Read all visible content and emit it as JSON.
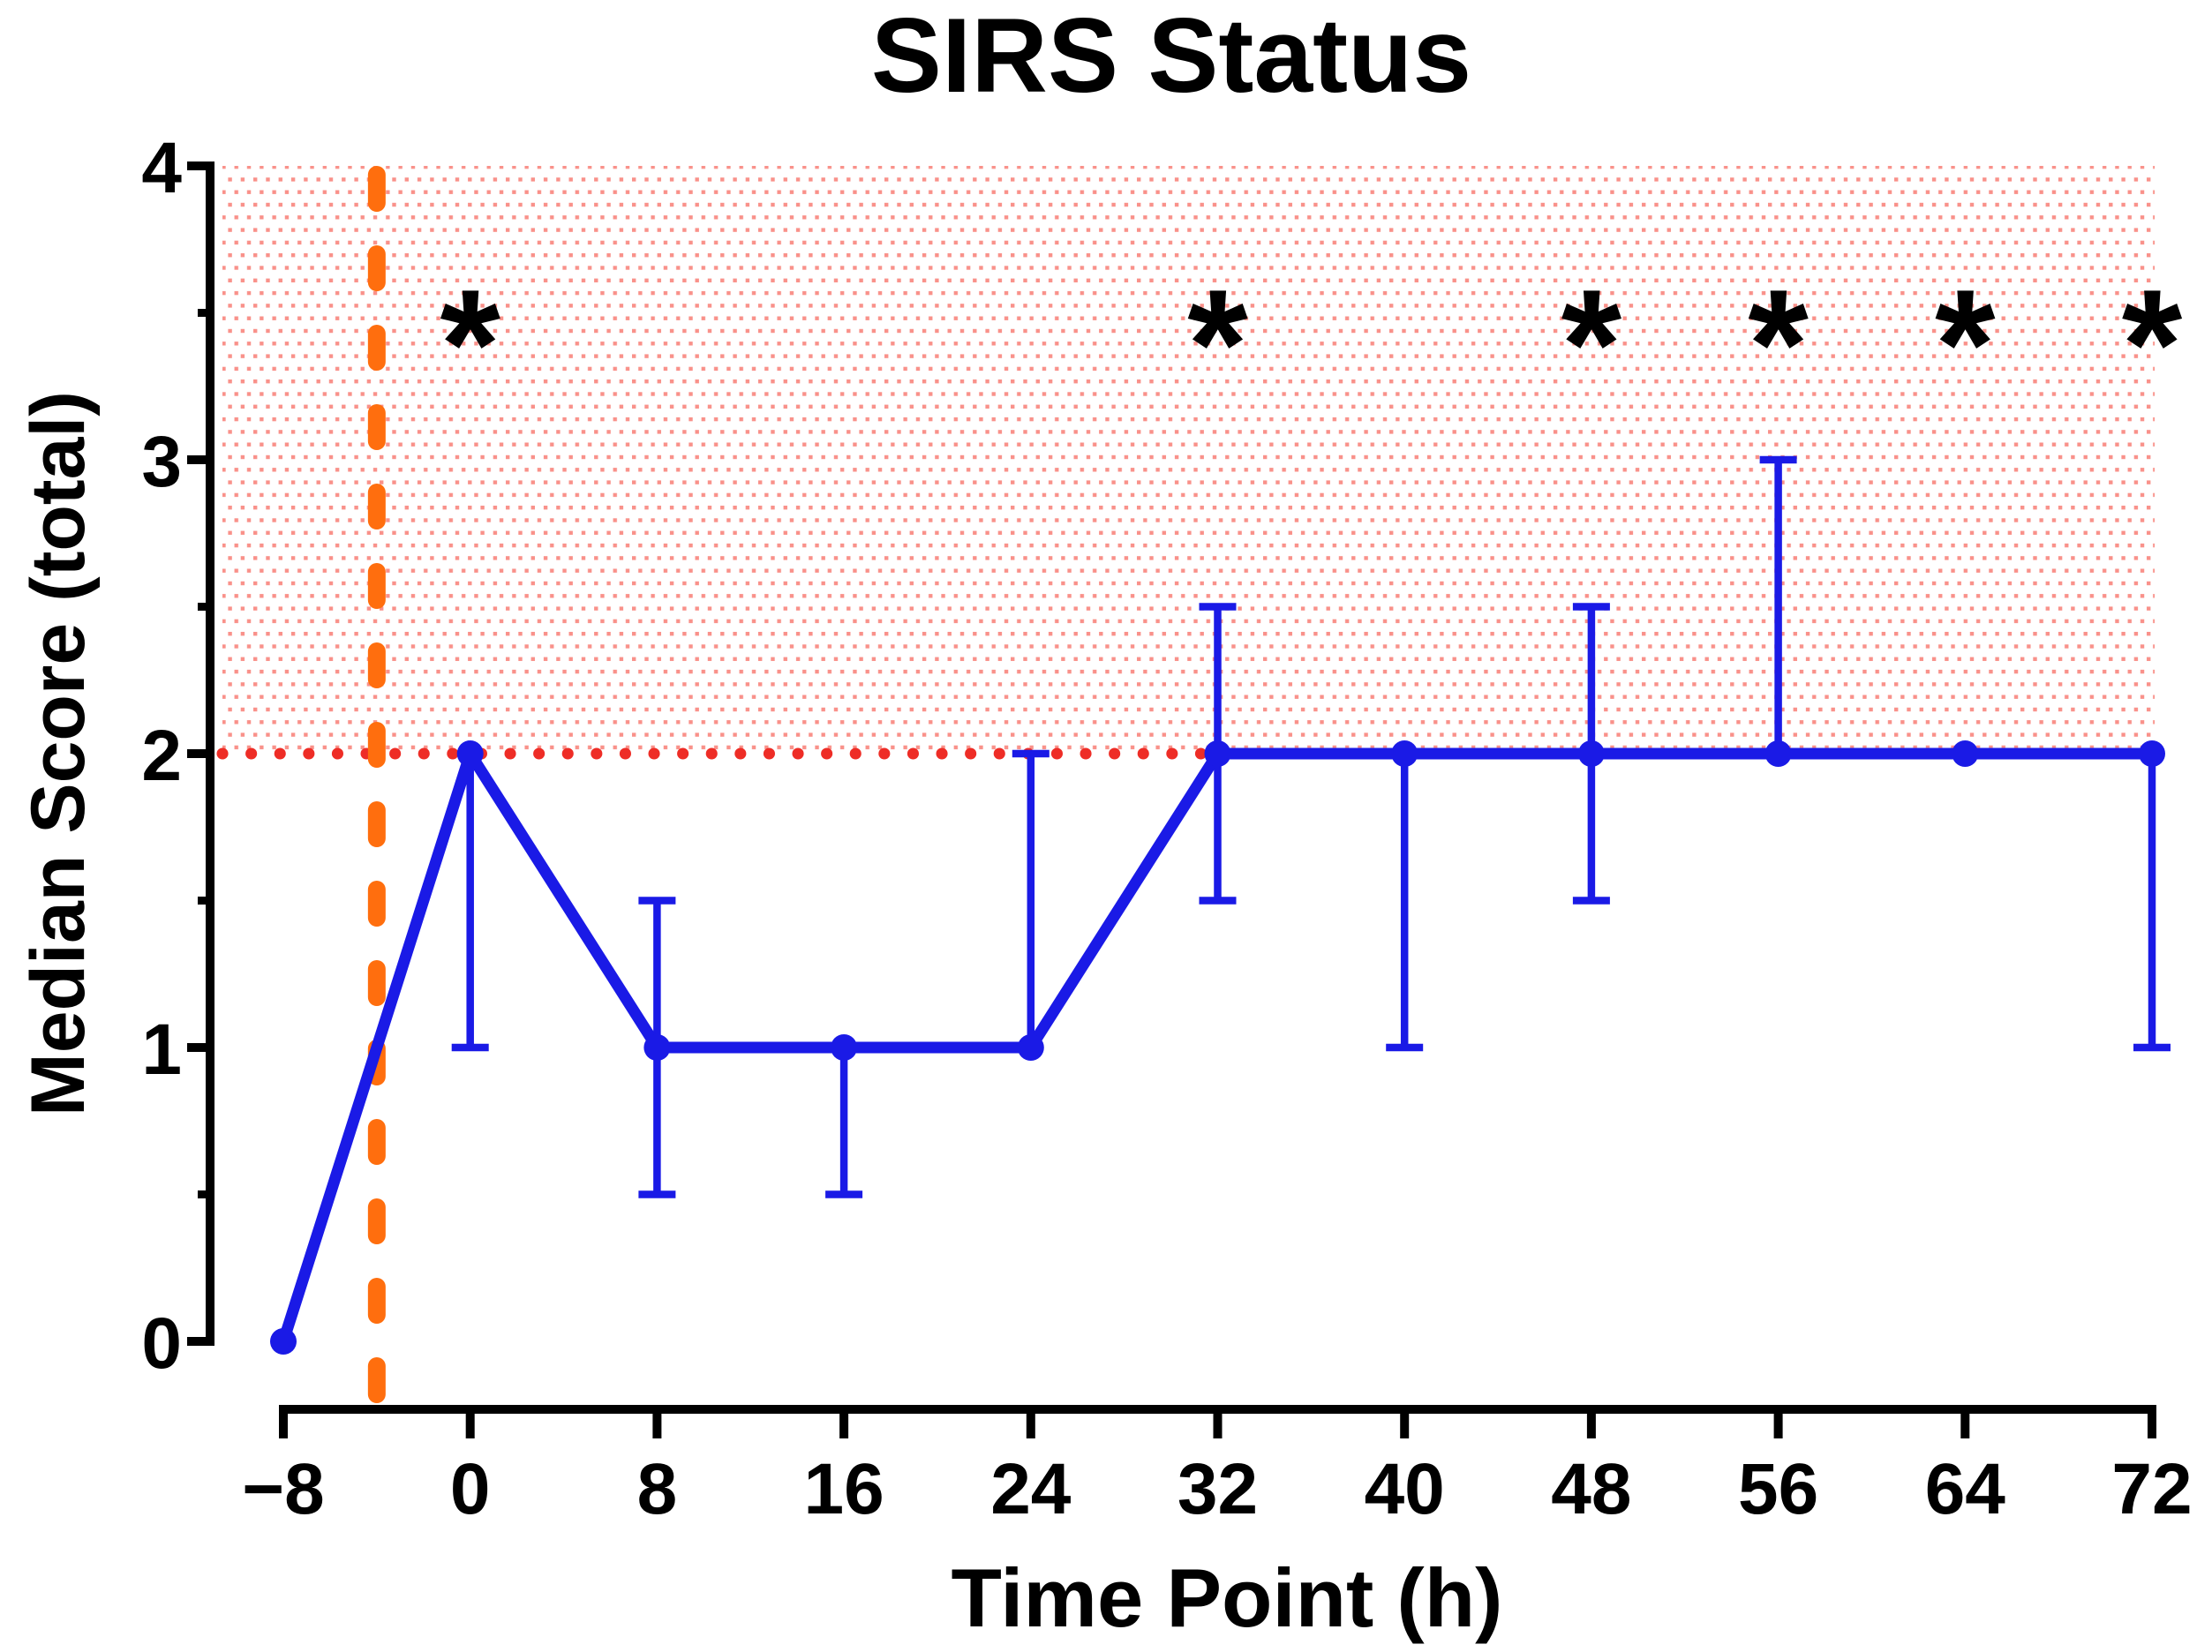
{
  "chart_data": {
    "type": "line",
    "title": "SIRS Status",
    "xlabel": "Time Point (h)",
    "ylabel": "Median Score (total)",
    "xlim": [
      -8,
      72
    ],
    "ylim": [
      0,
      4
    ],
    "x_ticks": [
      -8,
      0,
      8,
      16,
      24,
      32,
      40,
      48,
      56,
      64,
      72
    ],
    "y_ticks": [
      0,
      1,
      2,
      3,
      4
    ],
    "y_minor_ticks": [
      0.5,
      1.5,
      2.5,
      3.5
    ],
    "grid": false,
    "legend": "none",
    "series": [
      {
        "color": "#1A1AE6",
        "marker": "circle",
        "points": [
          {
            "x": -8,
            "y": 0,
            "err_lo": null,
            "err_hi": null
          },
          {
            "x": 0,
            "y": 2,
            "err_lo": 1,
            "err_hi": null
          },
          {
            "x": 8,
            "y": 1,
            "err_lo": 0.5,
            "err_hi": 1.5
          },
          {
            "x": 16,
            "y": 1,
            "err_lo": 0.5,
            "err_hi": null
          },
          {
            "x": 24,
            "y": 1,
            "err_lo": null,
            "err_hi": 2
          },
          {
            "x": 32,
            "y": 2,
            "err_lo": 1.5,
            "err_hi": 2.5
          },
          {
            "x": 40,
            "y": 2,
            "err_lo": 1,
            "err_hi": null
          },
          {
            "x": 48,
            "y": 2,
            "err_lo": 1.5,
            "err_hi": 2.5
          },
          {
            "x": 56,
            "y": 2,
            "err_lo": null,
            "err_hi": 3
          },
          {
            "x": 64,
            "y": 2,
            "err_lo": null,
            "err_hi": null
          },
          {
            "x": 72,
            "y": 2,
            "err_lo": 1,
            "err_hi": null
          }
        ]
      }
    ],
    "annotations": {
      "significance_marks": {
        "symbol": "*",
        "at_x": [
          0,
          32,
          48,
          56,
          64,
          72
        ],
        "y": 3.5
      },
      "threshold_line": {
        "y": 2,
        "style": "dotted",
        "color": "#EE2D26"
      },
      "shaded_region": {
        "y_from": 2,
        "y_to": 4,
        "fill_style": "dots",
        "dot_color": "#F9918A"
      },
      "event_line": {
        "x": -4,
        "style": "dashed",
        "color": "#FF6E0E"
      }
    }
  }
}
